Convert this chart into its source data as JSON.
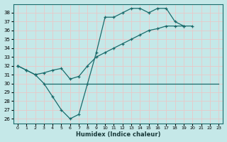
{
  "xlabel": "Humidex (Indice chaleur)",
  "bg_color": "#c5e8e8",
  "grid_color": "#e8c8c8",
  "line_color": "#1a6b6b",
  "xlim": [
    -0.5,
    23.5
  ],
  "ylim": [
    25.5,
    39.0
  ],
  "yticks": [
    26,
    27,
    28,
    29,
    30,
    31,
    32,
    33,
    34,
    35,
    36,
    37,
    38
  ],
  "xticks": [
    0,
    1,
    2,
    3,
    4,
    5,
    6,
    7,
    8,
    9,
    10,
    11,
    12,
    13,
    14,
    15,
    16,
    17,
    18,
    19,
    20,
    21,
    22,
    23
  ],
  "series1_x": [
    0,
    1,
    2,
    3,
    4,
    5,
    6,
    7,
    8,
    9,
    10,
    11,
    12,
    13,
    14,
    15,
    16,
    17,
    18,
    19,
    20,
    21,
    22,
    23
  ],
  "series1_y": [
    32.0,
    31.5,
    31.0,
    30.0,
    28.5,
    27.0,
    26.0,
    26.5,
    30.0,
    33.5,
    37.5,
    37.5,
    38.0,
    38.5,
    38.5,
    38.0,
    38.5,
    38.5,
    37.0,
    36.5,
    null,
    null,
    null,
    null
  ],
  "series2_x": [
    0,
    1,
    2,
    3,
    4,
    5,
    6,
    7,
    8,
    9,
    10,
    11,
    12,
    13,
    14,
    15,
    16,
    17,
    18,
    19,
    20,
    21,
    22,
    23
  ],
  "series2_y": [
    32.0,
    31.5,
    31.0,
    31.2,
    31.5,
    31.7,
    30.5,
    30.8,
    32.0,
    33.0,
    33.5,
    34.0,
    34.5,
    35.0,
    35.5,
    36.0,
    36.2,
    36.5,
    36.5,
    36.5,
    36.5,
    null,
    null,
    null
  ],
  "series3_x": [
    3,
    4,
    5,
    6,
    7,
    8,
    9,
    10,
    11,
    12,
    13,
    14,
    15,
    16,
    17,
    18,
    19,
    20,
    21,
    22,
    23
  ],
  "series3_y": [
    30.0,
    30.0,
    30.0,
    30.0,
    30.0,
    30.0,
    30.0,
    30.0,
    30.0,
    30.0,
    30.0,
    30.0,
    30.0,
    30.0,
    30.0,
    30.0,
    30.0,
    30.0,
    30.0,
    30.0,
    30.0
  ]
}
